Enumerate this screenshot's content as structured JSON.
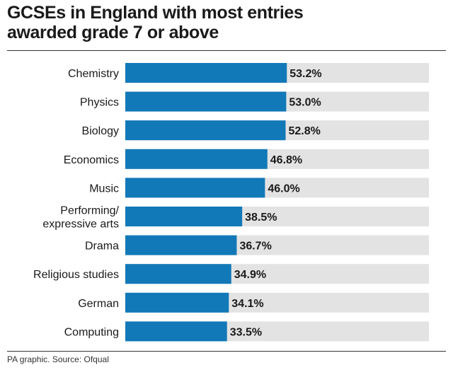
{
  "header": {
    "title_line1": "GCSEs in England with most entries",
    "title_line2": "awarded grade 7 or above"
  },
  "footer": {
    "source": "PA graphic. Source: Ofqual"
  },
  "colors": {
    "bar": "#1279b8",
    "track": "#e3e3e3",
    "text": "#1a1a1a"
  },
  "chart_data": {
    "type": "bar",
    "orientation": "horizontal",
    "title": "GCSEs in England with most entries awarded grade 7 or above",
    "categories": [
      [
        "Chemistry"
      ],
      [
        "Physics"
      ],
      [
        "Biology"
      ],
      [
        "Economics"
      ],
      [
        "Music"
      ],
      [
        "Performing/",
        "expressive arts"
      ],
      [
        "Drama"
      ],
      [
        "Religious studies"
      ],
      [
        "German"
      ],
      [
        "Computing"
      ]
    ],
    "values": [
      53.2,
      53.0,
      52.8,
      46.8,
      46.0,
      38.5,
      36.7,
      34.9,
      34.1,
      33.5
    ],
    "value_labels": [
      "53.2%",
      "53.0%",
      "52.8%",
      "46.8%",
      "46.0%",
      "38.5%",
      "36.7%",
      "34.9%",
      "34.1%",
      "33.5%"
    ],
    "xlim": [
      0,
      100
    ],
    "grid": false,
    "legend": "none"
  }
}
